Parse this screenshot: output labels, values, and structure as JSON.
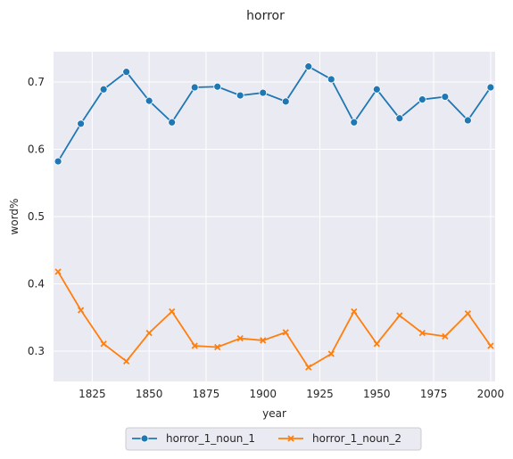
{
  "chart_data": {
    "type": "line",
    "title": "horror",
    "xlabel": "year",
    "ylabel": "word%",
    "xlim": [
      1808,
      2002
    ],
    "ylim": [
      0.255,
      0.745
    ],
    "xticks": [
      1825,
      1850,
      1875,
      1900,
      1925,
      1950,
      1975,
      2000
    ],
    "yticks": [
      0.3,
      0.4,
      0.5,
      0.6,
      0.7
    ],
    "grid": true,
    "legend_position": "bottom-center",
    "x": [
      1810,
      1820,
      1830,
      1840,
      1850,
      1860,
      1870,
      1880,
      1890,
      1900,
      1910,
      1920,
      1930,
      1940,
      1950,
      1960,
      1970,
      1980,
      1990,
      2000
    ],
    "series": [
      {
        "name": "horror_1_noun_1",
        "marker": "circle",
        "color": "#1f77b4",
        "values": [
          0.582,
          0.638,
          0.689,
          0.715,
          0.672,
          0.64,
          0.692,
          0.693,
          0.68,
          0.684,
          0.671,
          0.723,
          0.704,
          0.64,
          0.689,
          0.646,
          0.674,
          0.678,
          0.643,
          0.692
        ]
      },
      {
        "name": "horror_1_noun_2",
        "marker": "x",
        "color": "#ff7f0e",
        "values": [
          0.418,
          0.361,
          0.311,
          0.285,
          0.327,
          0.359,
          0.308,
          0.306,
          0.319,
          0.316,
          0.328,
          0.276,
          0.296,
          0.359,
          0.311,
          0.353,
          0.327,
          0.322,
          0.356,
          0.308
        ]
      }
    ]
  }
}
